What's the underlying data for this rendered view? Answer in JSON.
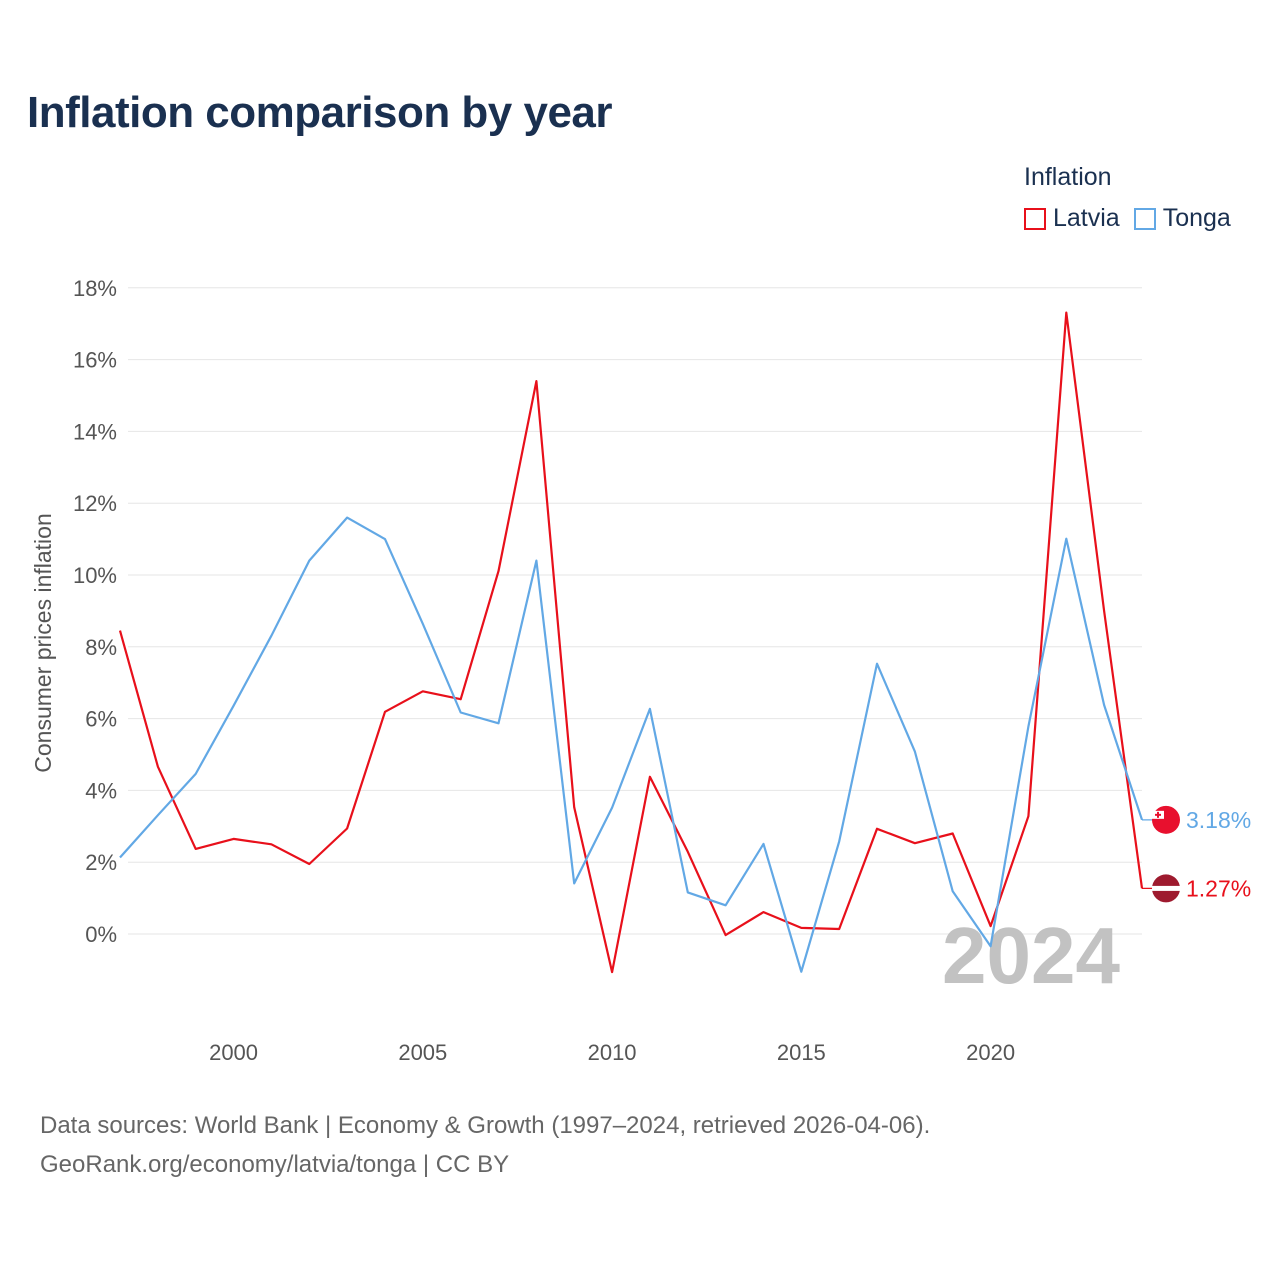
{
  "chart_data": {
    "type": "line",
    "title": "Inflation comparison by year",
    "legend_title": "Inflation",
    "ylabel": "Consumer prices inflation",
    "xlabel": "",
    "x": [
      1997,
      1998,
      1999,
      2000,
      2001,
      2002,
      2003,
      2004,
      2005,
      2006,
      2007,
      2008,
      2009,
      2010,
      2011,
      2012,
      2013,
      2014,
      2015,
      2016,
      2017,
      2018,
      2019,
      2020,
      2021,
      2022,
      2023,
      2024
    ],
    "xlim": [
      1997,
      2024
    ],
    "ylim": [
      -3,
      18
    ],
    "xticks": [
      2000,
      2005,
      2010,
      2015,
      2020
    ],
    "xtick_labels": [
      "2000",
      "2005",
      "2010",
      "2015",
      "2020"
    ],
    "yticks": [
      0,
      2,
      4,
      6,
      8,
      10,
      12,
      14,
      16,
      18
    ],
    "ytick_labels": [
      "0%",
      "2%",
      "4%",
      "6%",
      "8%",
      "10%",
      "12%",
      "14%",
      "16%",
      "18%"
    ],
    "series": [
      {
        "name": "Latvia",
        "color": "#e8101b",
        "end_label": "1.27%",
        "values": [
          8.45,
          4.66,
          2.37,
          2.65,
          2.5,
          1.95,
          2.94,
          6.19,
          6.76,
          6.54,
          10.11,
          15.4,
          3.53,
          -1.06,
          4.38,
          2.29,
          -0.03,
          0.61,
          0.17,
          0.14,
          2.93,
          2.53,
          2.8,
          0.22,
          3.28,
          17.31,
          9.0,
          1.27
        ]
      },
      {
        "name": "Tonga",
        "color": "#62a8e5",
        "end_label": "3.18%",
        "values": [
          2.13,
          3.31,
          4.46,
          6.36,
          8.31,
          10.4,
          11.6,
          11.0,
          8.64,
          6.17,
          5.87,
          10.4,
          1.41,
          3.52,
          6.27,
          1.16,
          0.8,
          2.51,
          -1.05,
          2.58,
          7.53,
          5.08,
          1.19,
          -0.34,
          5.78,
          11.01,
          6.38,
          3.18
        ]
      }
    ],
    "watermark": "2024"
  },
  "source": {
    "line1": "Data sources: World Bank | Economy & Growth (1997–2024, retrieved 2026-04-06).",
    "line2": "GeoRank.org/economy/latvia/tonga | CC BY"
  }
}
